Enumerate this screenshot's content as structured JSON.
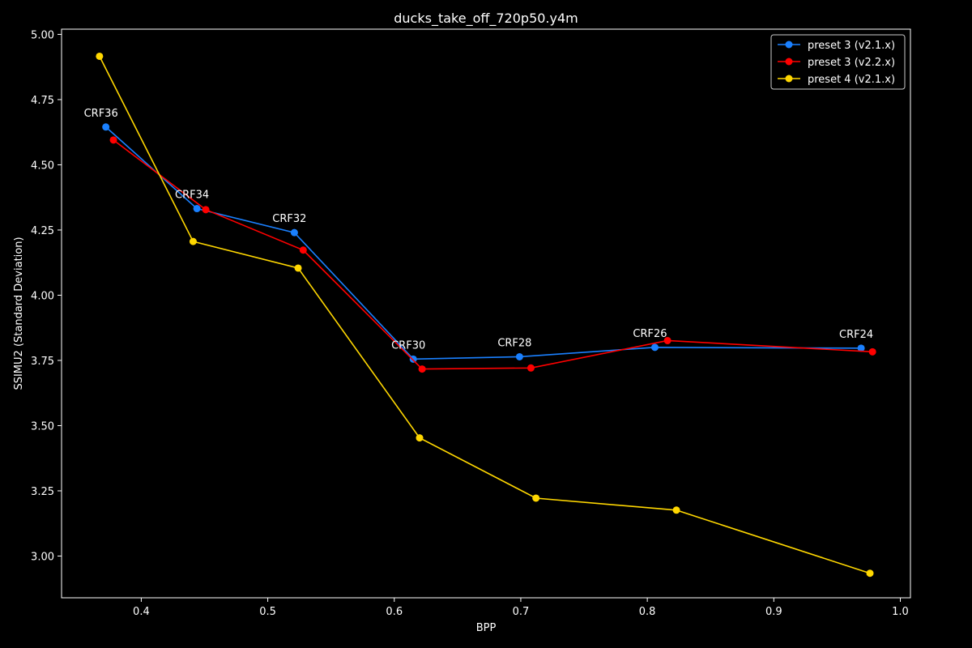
{
  "chart_data": {
    "type": "line",
    "title": "ducks_take_off_720p50.y4m",
    "xlabel": "BPP",
    "ylabel": "SSIMU2 (Standard Deviation)",
    "xlim": [
      0.337,
      1.008
    ],
    "ylim": [
      2.84,
      5.02
    ],
    "xticks": [
      "0.4",
      "0.5",
      "0.6",
      "0.7",
      "0.8",
      "0.9",
      "1.0"
    ],
    "xtick_values": [
      0.4,
      0.5,
      0.6,
      0.7,
      0.8,
      0.9,
      1.0
    ],
    "yticks": [
      "3.00",
      "3.25",
      "3.50",
      "3.75",
      "4.00",
      "4.25",
      "4.50",
      "4.75",
      "5.00"
    ],
    "ytick_values": [
      3.0,
      3.25,
      3.5,
      3.75,
      4.0,
      4.25,
      4.5,
      4.75,
      5.0
    ],
    "grid": false,
    "legend_position": "top-right",
    "series": [
      {
        "name": "preset 3 (v2.1.x)",
        "color": "#1a80ff",
        "x": [
          0.372,
          0.444,
          0.521,
          0.615,
          0.699,
          0.806,
          0.969
        ],
        "y": [
          4.645,
          4.332,
          4.24,
          3.755,
          3.764,
          3.8,
          3.797
        ]
      },
      {
        "name": "preset 3 (v2.2.x)",
        "color": "#ff0000",
        "x": [
          0.378,
          0.451,
          0.528,
          0.622,
          0.708,
          0.816,
          0.978
        ],
        "y": [
          4.595,
          4.328,
          4.173,
          3.717,
          3.721,
          3.826,
          3.783
        ]
      },
      {
        "name": "preset 4 (v2.1.x)",
        "color": "#ffd700",
        "x": [
          0.367,
          0.441,
          0.524,
          0.62,
          0.712,
          0.823,
          0.976
        ],
        "y": [
          4.916,
          4.206,
          4.104,
          3.453,
          3.222,
          3.176,
          2.934
        ]
      }
    ],
    "annotations": [
      {
        "text": "CRF36",
        "x": 0.372,
        "y": 4.645
      },
      {
        "text": "CRF34",
        "x": 0.444,
        "y": 4.332
      },
      {
        "text": "CRF32",
        "x": 0.521,
        "y": 4.24
      },
      {
        "text": "CRF30",
        "x": 0.615,
        "y": 3.755
      },
      {
        "text": "CRF28",
        "x": 0.699,
        "y": 3.764
      },
      {
        "text": "CRF26",
        "x": 0.806,
        "y": 3.8
      },
      {
        "text": "CRF24",
        "x": 0.969,
        "y": 3.797
      }
    ]
  }
}
